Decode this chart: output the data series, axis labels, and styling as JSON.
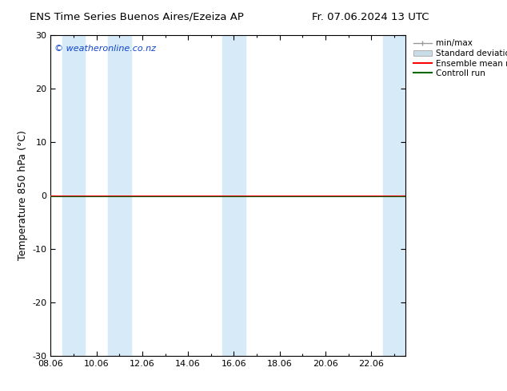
{
  "title_left": "ENS Time Series Buenos Aires/Ezeiza AP",
  "title_right": "Fr. 07.06.2024 13 UTC",
  "ylabel": "Temperature 850 hPa (°C)",
  "xlabel_ticks": [
    "08.06",
    "10.06",
    "12.06",
    "14.06",
    "16.06",
    "18.06",
    "20.06",
    "22.06"
  ],
  "xlim": [
    0,
    15.5
  ],
  "ylim": [
    -30,
    30
  ],
  "yticks": [
    -30,
    -20,
    -10,
    0,
    10,
    20,
    30
  ],
  "watermark": "© weatheronline.co.nz",
  "watermark_color": "#1144cc",
  "bg_color": "#ffffff",
  "plot_bg_color": "#ffffff",
  "shaded_band_color": "#d6eaf8",
  "shaded_band_alpha": 1.0,
  "ensemble_mean_color": "#ff0000",
  "control_run_color": "#006600",
  "minmax_color": "#999999",
  "std_dev_color": "#c8dce8",
  "legend_labels": [
    "min/max",
    "Standard deviation",
    "Ensemble mean run",
    "Controll run"
  ],
  "zero_line_y": 0,
  "shaded_columns_x": [
    [
      0.5,
      1.5
    ],
    [
      2.5,
      3.5
    ],
    [
      7.5,
      8.5
    ],
    [
      14.5,
      15.5
    ]
  ],
  "x_tick_positions": [
    0,
    2,
    4,
    6,
    8,
    10,
    12,
    14
  ],
  "x_minor_tick_positions": [
    1,
    3,
    5,
    7,
    9,
    11,
    13,
    15
  ],
  "ensemble_mean_y": 0,
  "control_run_y": -0.1
}
